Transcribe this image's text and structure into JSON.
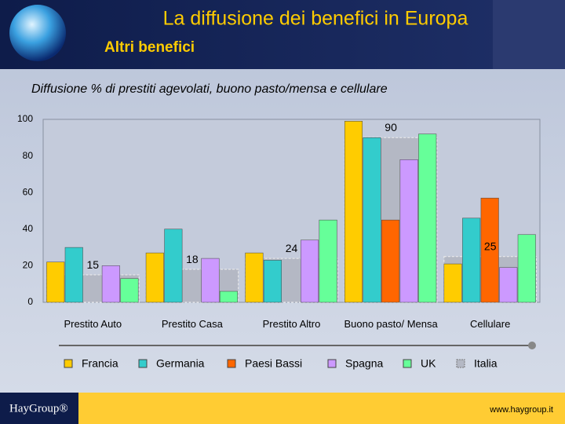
{
  "slide": {
    "title": "La diffusione dei benefici in Europa",
    "subtitle": "Altri benefici",
    "logo": "HayGroup®",
    "url": "www.haygroup.it"
  },
  "chart_data": {
    "type": "bar",
    "title": "Diffusione % di prestiti agevolati, buono pasto/mensa e cellulare",
    "categories": [
      "Prestito Auto",
      "Prestito Casa",
      "Prestito Altro",
      "Buono pasto/ Mensa",
      "Cellulare"
    ],
    "series": [
      {
        "name": "Francia",
        "color": "#ffcc00",
        "values": [
          22,
          27,
          27,
          99,
          21
        ]
      },
      {
        "name": "Germania",
        "color": "#33cccc",
        "values": [
          30,
          40,
          23,
          90,
          46
        ]
      },
      {
        "name": "Paesi Bassi",
        "color": "#ff6600",
        "values": [
          null,
          null,
          null,
          45,
          57
        ]
      },
      {
        "name": "Spagna",
        "color": "#cc99ff",
        "values": [
          20,
          24,
          34,
          78,
          19
        ]
      },
      {
        "name": "UK",
        "color": "#66ff99",
        "values": [
          13,
          6,
          45,
          92,
          37
        ]
      },
      {
        "name": "Italia",
        "color": "#b4b8c4",
        "values": [
          15,
          18,
          24,
          90,
          25
        ]
      }
    ],
    "ylim": [
      0,
      100
    ],
    "yticks": [
      0,
      20,
      40,
      60,
      80,
      100
    ],
    "grid": false
  }
}
